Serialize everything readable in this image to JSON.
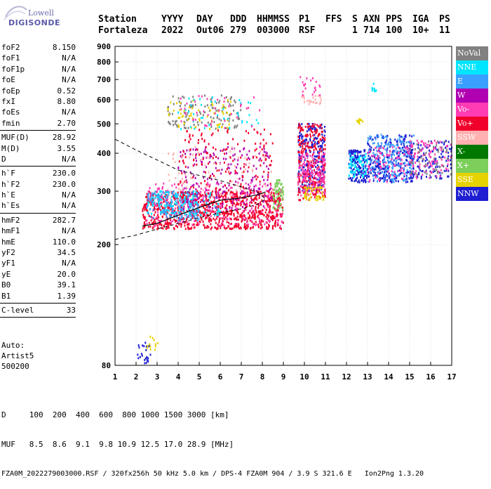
{
  "logo": {
    "line1": "Lowell",
    "line2": "DIGISONDE"
  },
  "header": {
    "row1": [
      "Station",
      "YYYY",
      "DAY",
      "DDD",
      "HHMMSS",
      "P1",
      "FFS",
      "S",
      "AXN",
      "PPS",
      "IGA",
      "PS"
    ],
    "row2": [
      "Fortaleza",
      "2022",
      "Out06",
      "279",
      "003000",
      "RSF",
      "",
      "1",
      "714",
      "100",
      "10+",
      "11"
    ]
  },
  "params": [
    {
      "label": "foF2",
      "value": "8.150"
    },
    {
      "label": "foF1",
      "value": "N/A"
    },
    {
      "label": "foF1p",
      "value": "N/A"
    },
    {
      "label": "foE",
      "value": "N/A"
    },
    {
      "label": "foEp",
      "value": "0.52"
    },
    {
      "label": "fxI",
      "value": "8.80"
    },
    {
      "label": "foEs",
      "value": "N/A"
    },
    {
      "label": "fmin",
      "value": "2.70",
      "sep": true
    },
    {
      "label": "MUF(D)",
      "value": "28.92"
    },
    {
      "label": "M(D)",
      "value": "3.55"
    },
    {
      "label": "D",
      "value": "N/A",
      "sep": true
    },
    {
      "label": "h`F",
      "value": "230.0"
    },
    {
      "label": "h`F2",
      "value": "230.0"
    },
    {
      "label": "h`E",
      "value": "N/A"
    },
    {
      "label": "h`Es",
      "value": "N/A",
      "sep": true
    },
    {
      "label": "hmF2",
      "value": "282.7"
    },
    {
      "label": "hmF1",
      "value": "N/A"
    },
    {
      "label": "hmE",
      "value": "110.0"
    },
    {
      "label": "yF2",
      "value": "34.5"
    },
    {
      "label": "yF1",
      "value": "N/A"
    },
    {
      "label": "yE",
      "value": "20.0"
    },
    {
      "label": "B0",
      "value": "39.1"
    },
    {
      "label": "B1",
      "value": "1.39",
      "sep": true
    },
    {
      "label": "C-level",
      "value": "33",
      "sep": true
    }
  ],
  "auto": {
    "line1": "Auto:",
    "line2": "Artist5",
    "line3": "500200"
  },
  "legend": [
    {
      "label": "NoVal",
      "color": "#808080"
    },
    {
      "label": "NNE",
      "color": "#00e5ff"
    },
    {
      "label": "E",
      "color": "#3aa0ff"
    },
    {
      "label": "W",
      "color": "#b000b0"
    },
    {
      "label": "Vo-",
      "color": "#ff3cb4"
    },
    {
      "label": "Vo+",
      "color": "#f0002a"
    },
    {
      "label": "SSW",
      "color": "#ffb0b0"
    },
    {
      "label": "X-",
      "color": "#007800"
    },
    {
      "label": "X+",
      "color": "#7ccf5a"
    },
    {
      "label": "SSE",
      "color": "#e6d200"
    },
    {
      "label": "NNW",
      "color": "#1e1ed2"
    }
  ],
  "footer": {
    "row1": "D     100  200  400  600  800 1000 1500 3000 [km]",
    "row2": "MUF   8.5  8.6  9.1  9.8 10.9 12.5 17.0 28.9 [MHz]",
    "row3": "FZA0M_2022279003000.RSF / 320fx256h 50 kHz 5.0 km / DPS-4 FZA0M 904 / 3.9 S 321.6 E   Ion2Png 1.3.20"
  },
  "chart_data": {
    "type": "scatter",
    "x_ticks": [
      1,
      2,
      3,
      4,
      5,
      6,
      7,
      8,
      9,
      10,
      11,
      12,
      13,
      14,
      15,
      16,
      17
    ],
    "y_ticks": [
      80,
      200,
      300,
      400,
      500,
      600,
      700,
      800,
      900
    ],
    "xlim": [
      1,
      17
    ],
    "ylim": [
      80,
      900
    ],
    "yscale": "log",
    "grid": true,
    "legend_position": "right",
    "clusters": [
      {
        "xmin": 2.0,
        "xmax": 2.7,
        "ymin": 80,
        "ymax": 95,
        "color": "#1e1ed2",
        "n": 25
      },
      {
        "xmin": 2.3,
        "xmax": 3.2,
        "ymin": 90,
        "ymax": 100,
        "color": "#e6d200",
        "n": 12
      },
      {
        "xmin": 2.3,
        "xmax": 9.0,
        "ymin": 225,
        "ymax": 300,
        "color": "#f0002a",
        "n": 900
      },
      {
        "xmin": 2.5,
        "xmax": 9.0,
        "ymin": 230,
        "ymax": 320,
        "color": "#ff3cb4",
        "n": 250
      },
      {
        "xmin": 2.5,
        "xmax": 5.0,
        "ymin": 240,
        "ymax": 300,
        "color": "#3aa0ff",
        "n": 180
      },
      {
        "xmin": 2.5,
        "xmax": 6.0,
        "ymin": 250,
        "ymax": 300,
        "color": "#00e5ff",
        "n": 120
      },
      {
        "xmin": 4.0,
        "xmax": 8.5,
        "ymin": 260,
        "ymax": 420,
        "color": "#b000b0",
        "n": 220
      },
      {
        "xmin": 4.0,
        "xmax": 8.5,
        "ymin": 270,
        "ymax": 480,
        "color": "#f0002a",
        "n": 180
      },
      {
        "xmin": 3.5,
        "xmax": 8.5,
        "ymin": 280,
        "ymax": 420,
        "color": "#ffb0b0",
        "n": 80
      },
      {
        "xmin": 3.5,
        "xmax": 7.0,
        "ymin": 480,
        "ymax": 620,
        "color": "#808080",
        "n": 120
      },
      {
        "xmin": 3.5,
        "xmax": 6.5,
        "ymin": 480,
        "ymax": 600,
        "color": "#e6d200",
        "n": 60
      },
      {
        "xmin": 4.0,
        "xmax": 8.0,
        "ymin": 480,
        "ymax": 620,
        "color": "#00e5ff",
        "n": 40
      },
      {
        "xmin": 4.0,
        "xmax": 8.0,
        "ymin": 480,
        "ymax": 620,
        "color": "#ff3cb4",
        "n": 40
      },
      {
        "xmin": 8.5,
        "xmax": 9.0,
        "ymin": 260,
        "ymax": 330,
        "color": "#7ccf5a",
        "n": 60
      },
      {
        "xmin": 9.7,
        "xmax": 11.0,
        "ymin": 300,
        "ymax": 500,
        "color": "#1e1ed2",
        "n": 260
      },
      {
        "xmin": 9.7,
        "xmax": 11.0,
        "ymin": 280,
        "ymax": 500,
        "color": "#f0002a",
        "n": 260
      },
      {
        "xmin": 9.7,
        "xmax": 11.0,
        "ymin": 290,
        "ymax": 400,
        "color": "#ff3cb4",
        "n": 150
      },
      {
        "xmin": 10.0,
        "xmax": 11.0,
        "ymin": 280,
        "ymax": 310,
        "color": "#e6d200",
        "n": 50
      },
      {
        "xmin": 9.8,
        "xmax": 10.8,
        "ymin": 580,
        "ymax": 620,
        "color": "#ffb0b0",
        "n": 25
      },
      {
        "xmin": 9.8,
        "xmax": 10.8,
        "ymin": 620,
        "ymax": 720,
        "color": "#ff3cb4",
        "n": 20
      },
      {
        "xmin": 12.1,
        "xmax": 13.0,
        "ymin": 320,
        "ymax": 410,
        "color": "#1e1ed2",
        "n": 140
      },
      {
        "xmin": 12.1,
        "xmax": 13.0,
        "ymin": 330,
        "ymax": 400,
        "color": "#00e5ff",
        "n": 70
      },
      {
        "xmin": 12.5,
        "xmax": 12.8,
        "ymin": 500,
        "ymax": 520,
        "color": "#e6d200",
        "n": 12
      },
      {
        "xmin": 13.2,
        "xmax": 13.5,
        "ymin": 640,
        "ymax": 680,
        "color": "#00e5ff",
        "n": 10
      },
      {
        "xmin": 13.0,
        "xmax": 15.2,
        "ymin": 320,
        "ymax": 460,
        "color": "#1e1ed2",
        "n": 260
      },
      {
        "xmin": 13.0,
        "xmax": 15.2,
        "ymin": 320,
        "ymax": 460,
        "color": "#3aa0ff",
        "n": 200
      },
      {
        "xmin": 13.0,
        "xmax": 15.2,
        "ymin": 320,
        "ymax": 420,
        "color": "#ff3cb4",
        "n": 90
      },
      {
        "xmin": 15.0,
        "xmax": 17.0,
        "ymin": 330,
        "ymax": 440,
        "color": "#1e1ed2",
        "n": 120
      },
      {
        "xmin": 15.0,
        "xmax": 17.0,
        "ymin": 330,
        "ymax": 440,
        "color": "#ff3cb4",
        "n": 100
      },
      {
        "xmin": 15.0,
        "xmax": 17.0,
        "ymin": 330,
        "ymax": 440,
        "color": "#808080",
        "n": 50
      }
    ],
    "trace": [
      [
        2.3,
        230
      ],
      [
        3.0,
        235
      ],
      [
        4.0,
        250
      ],
      [
        5.0,
        265
      ],
      [
        6.0,
        280
      ],
      [
        7.0,
        285
      ],
      [
        7.8,
        292
      ],
      [
        8.15,
        298
      ]
    ],
    "profile": [
      [
        1.0,
        208
      ],
      [
        2.0,
        215
      ],
      [
        3.0,
        225
      ],
      [
        4.0,
        235
      ],
      [
        5.0,
        245
      ],
      [
        6.0,
        255
      ],
      [
        7.0,
        262
      ],
      [
        7.8,
        272
      ],
      [
        8.15,
        282.7
      ],
      [
        7.8,
        297
      ],
      [
        7.0,
        310
      ],
      [
        6.0,
        325
      ],
      [
        5.0,
        338
      ],
      [
        4.0,
        352
      ],
      [
        3.0,
        380
      ],
      [
        2.0,
        410
      ],
      [
        1.0,
        445
      ]
    ]
  }
}
